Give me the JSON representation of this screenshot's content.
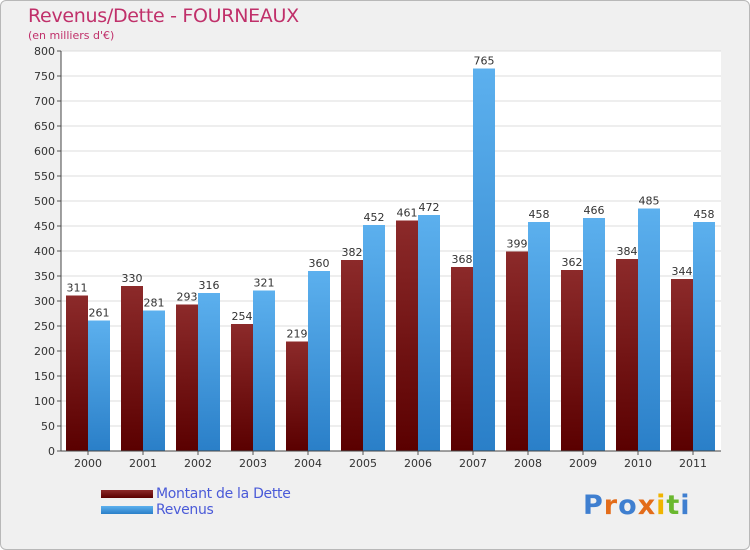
{
  "chart_data": {
    "type": "bar",
    "title": "Revenus/Dette - FOURNEAUX",
    "subtitle": "(en milliers d'€)",
    "categories": [
      "2000",
      "2001",
      "2002",
      "2003",
      "2004",
      "2005",
      "2006",
      "2007",
      "2008",
      "2009",
      "2010",
      "2011"
    ],
    "series": [
      {
        "name": "Montant de la Dette",
        "color": "#7a1515",
        "values": [
          311,
          330,
          293,
          254,
          219,
          382,
          461,
          368,
          399,
          362,
          384,
          344
        ]
      },
      {
        "name": "Revenus",
        "color": "#3e9be6",
        "values": [
          261,
          281,
          316,
          321,
          360,
          452,
          472,
          765,
          458,
          466,
          485,
          458
        ]
      }
    ],
    "ylim": [
      0,
      800
    ],
    "yticks": [
      0,
      50,
      100,
      150,
      200,
      250,
      300,
      350,
      400,
      450,
      500,
      550,
      600,
      650,
      700,
      750,
      800
    ],
    "grid": true,
    "legend": "bottom-left"
  },
  "logo": {
    "letters": [
      "P",
      "r",
      "o",
      "x",
      "i",
      "t",
      "i"
    ],
    "colors": [
      "#3f7fd0",
      "#e36c1a",
      "#3f7fd0",
      "#e36c1a",
      "#f0b400",
      "#6ab82f",
      "#3f7fd0"
    ]
  }
}
